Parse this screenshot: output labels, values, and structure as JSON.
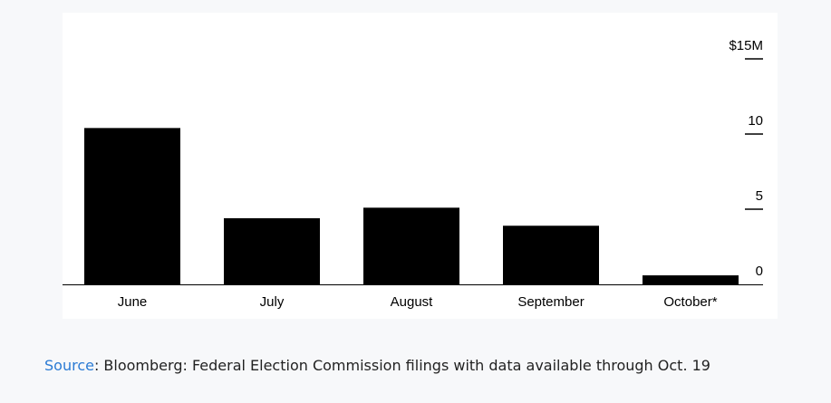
{
  "chart_data": {
    "type": "bar",
    "categories": [
      "June",
      "July",
      "August",
      "September",
      "October*"
    ],
    "values": [
      10.4,
      4.4,
      5.1,
      3.9,
      0.6
    ],
    "ylim": [
      0,
      15
    ],
    "yticks": [
      {
        "value": 0,
        "label": "0"
      },
      {
        "value": 5,
        "label": "5"
      },
      {
        "value": 10,
        "label": "10"
      },
      {
        "value": 15,
        "label": "$15M"
      }
    ],
    "bar_color": "#000000",
    "axis_position": "right",
    "grid": false
  },
  "source": {
    "link_text": "Source",
    "text": ": Bloomberg: Federal Election Commission filings with data available through Oct. 19",
    "link_color": "#2b7bd4"
  }
}
